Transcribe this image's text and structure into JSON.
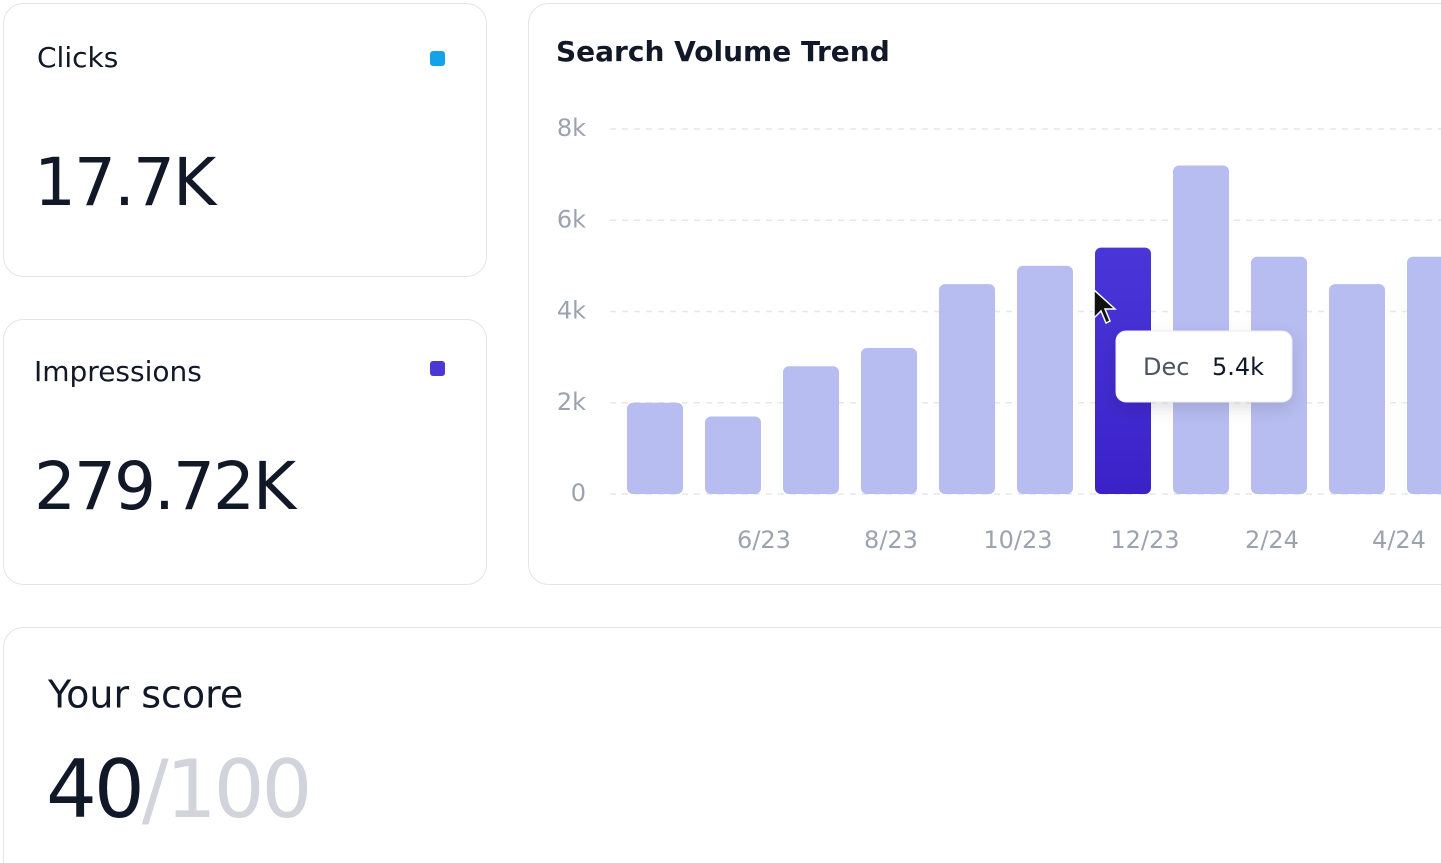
{
  "cards": [
    {
      "label": "Clicks",
      "value": "17.7K",
      "color": "#14a3e8"
    },
    {
      "label": "Impressions",
      "value": "279.72K",
      "color": "#4a38d4"
    }
  ],
  "chart_data": {
    "type": "bar",
    "title": "Search Volume Trend",
    "categories": [
      "6/23",
      null,
      "8/23",
      null,
      "10/23",
      null,
      "12/23",
      null,
      "2/24",
      null,
      "4/24"
    ],
    "values": [
      2000,
      1700,
      2800,
      3200,
      4600,
      5000,
      5400,
      7200,
      5200,
      4600,
      5200
    ],
    "color": "#b7bcf1",
    "highlight_index": 6,
    "highlight_color": "#4632d6",
    "ylim": [
      0,
      8000
    ],
    "yticks": [
      0,
      {
        "value": 2000,
        "label": "2k"
      },
      {
        "value": 4000,
        "label": "4k"
      },
      {
        "value": 6000,
        "label": "6k"
      },
      {
        "value": 8000,
        "label": "8k"
      }
    ],
    "grid": true,
    "tooltip": {
      "label": "Dec",
      "text": "5.4k"
    }
  },
  "score": {
    "label": "Your score",
    "value": "40",
    "max_label": "/100"
  }
}
